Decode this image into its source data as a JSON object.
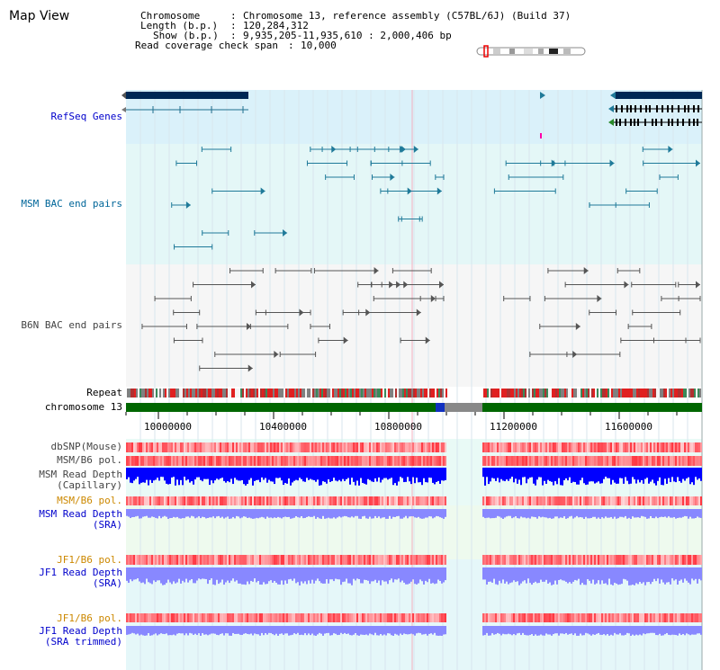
{
  "view_title": "Map View",
  "info": {
    "chromosome_key": "Chromosome",
    "chromosome_val": "Chromosome 13, reference assembly (C57BL/6J) (Build 37)",
    "length_key": "Length (b.p.)",
    "length_val": "120,284,312",
    "show_key": "Show (b.p.)",
    "show_val": "9,935,205-11,935,610 : 2,000,406 bp",
    "span_key": "Read coverage check span",
    "span_val": "10,000"
  },
  "tracks": {
    "refseq": "RefSeq Genes",
    "msm_bac": "MSM BAC end pairs",
    "b6n_bac": "B6N BAC end pairs",
    "repeat": "Repeat",
    "chromosome": "chromosome 13",
    "dbsnp": "dbSNP(Mouse)",
    "msm_b6_pol_1": "MSM/B6 pol.",
    "msm_depth_cap_1": "MSM Read Depth",
    "msm_depth_cap_2": "(Capillary)",
    "msm_b6_pol_2": "MSM/B6 pol.",
    "msm_depth_sra_1": "MSM Read Depth",
    "msm_depth_sra_2": "(SRA)",
    "jf1_b6_pol_1": "JF1/B6 pol.",
    "jf1_depth_sra_1": "JF1 Read Depth",
    "jf1_depth_sra_2": "(SRA)",
    "jf1_b6_pol_2": "JF1/B6 pol.",
    "jf1_depth_trim_1": "JF1 Read Depth",
    "jf1_depth_trim_2": "(SRA trimmed)"
  },
  "axis_ticks": [
    "10000000",
    "10400000",
    "10800000",
    "11200000",
    "11600000"
  ],
  "colors": {
    "refseq_bg": "#daf1fa",
    "msm_bg": "#e4f7f7",
    "b6n_bg": "#f6f6f6",
    "gene_dark": "#002855",
    "msm_feature": "#1f7a99",
    "b6n_feature": "#555555",
    "chromosome_bar": "#006600",
    "depth_blue": "#0000ff",
    "depth_light_blue": "#8888ff",
    "pol_red": "#ff4444"
  }
}
